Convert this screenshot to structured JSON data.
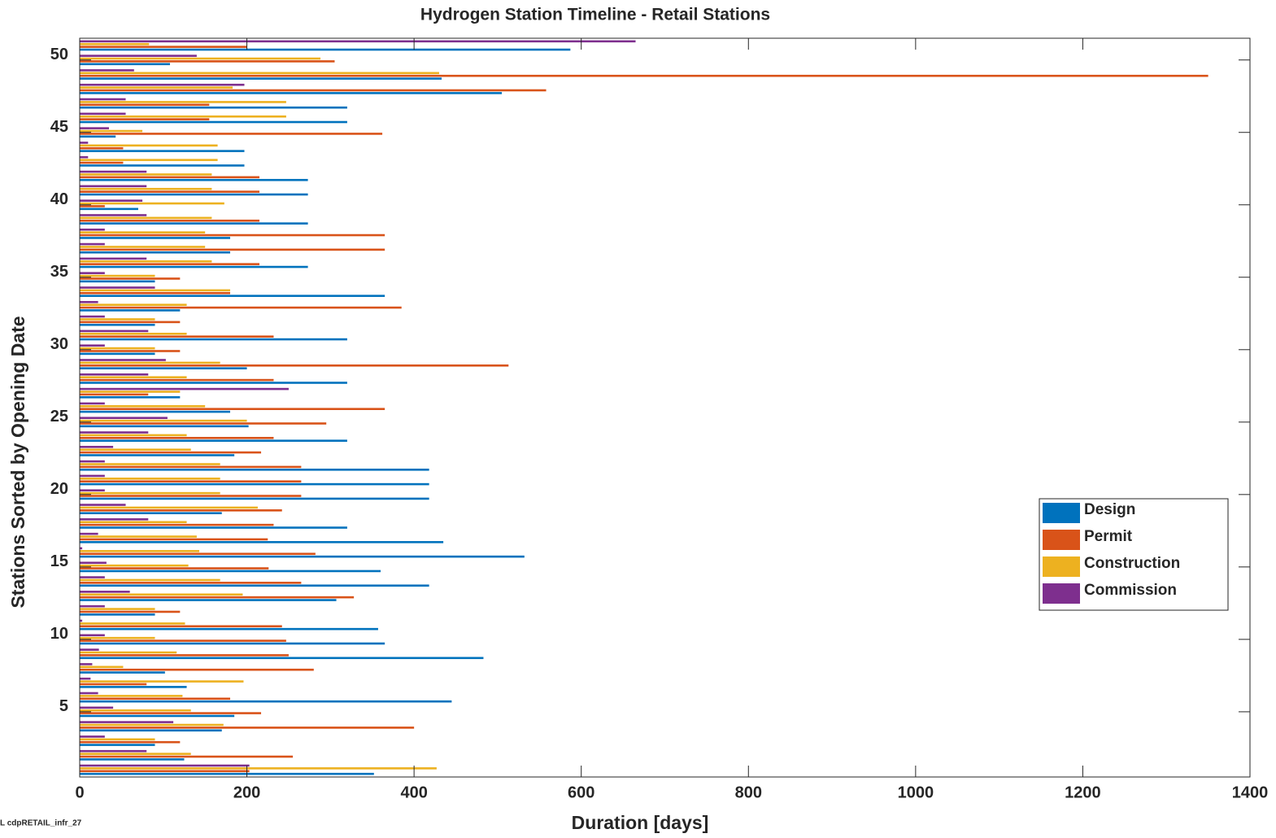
{
  "chart_data": {
    "type": "barh",
    "title": "Hydrogen Station Timeline - Retail Stations",
    "xlabel": "Duration [days]",
    "ylabel": "Stations Sorted by Opening Date",
    "footer": "L cdpRETAIL_infr_27",
    "y": [
      1,
      2,
      3,
      4,
      5,
      6,
      7,
      8,
      9,
      10,
      11,
      12,
      13,
      14,
      15,
      16,
      17,
      18,
      19,
      20,
      21,
      22,
      23,
      24,
      25,
      26,
      27,
      28,
      29,
      30,
      31,
      32,
      33,
      34,
      35,
      36,
      37,
      38,
      39,
      40,
      41,
      42,
      43,
      44,
      45,
      46,
      47,
      48,
      49,
      50,
      51
    ],
    "xlim": [
      0,
      1400
    ],
    "xticks": [
      0,
      200,
      400,
      600,
      800,
      1000,
      1200,
      1400
    ],
    "ylim": [
      0.5,
      51.5
    ],
    "yticks": [
      5,
      10,
      15,
      20,
      25,
      30,
      35,
      40,
      45,
      50
    ],
    "legend": "right",
    "series": [
      {
        "name": "Design",
        "color": "#0072BD",
        "values": [
          352,
          125,
          90,
          170,
          185,
          445,
          128,
          102,
          483,
          365,
          357,
          90,
          307,
          418,
          360,
          532,
          435,
          320,
          170,
          418,
          418,
          418,
          185,
          320,
          202,
          180,
          120,
          320,
          200,
          90,
          320,
          90,
          120,
          365,
          90,
          273,
          180,
          180,
          273,
          70,
          273,
          273,
          197,
          197,
          43,
          320,
          320,
          505,
          433,
          108,
          587
        ]
      },
      {
        "name": "Permit",
        "color": "#D95319",
        "values": [
          203,
          255,
          120,
          400,
          217,
          180,
          80,
          280,
          250,
          247,
          242,
          120,
          328,
          265,
          226,
          282,
          225,
          232,
          242,
          265,
          265,
          265,
          217,
          232,
          295,
          365,
          82,
          232,
          513,
          120,
          232,
          120,
          385,
          180,
          120,
          215,
          365,
          365,
          215,
          30,
          215,
          215,
          52,
          52,
          362,
          155,
          155,
          558,
          1350,
          305,
          200
        ]
      },
      {
        "name": "Construction",
        "color": "#EDB120",
        "values": [
          427,
          133,
          90,
          172,
          133,
          123,
          196,
          52,
          116,
          90,
          126,
          90,
          195,
          168,
          130,
          143,
          140,
          128,
          213,
          168,
          168,
          168,
          133,
          128,
          200,
          150,
          120,
          128,
          168,
          90,
          128,
          90,
          128,
          180,
          90,
          158,
          150,
          150,
          158,
          173,
          158,
          158,
          165,
          165,
          75,
          247,
          247,
          183,
          430,
          288,
          83
        ]
      },
      {
        "name": "Commission",
        "color": "#7E2F8E",
        "values": [
          203,
          80,
          30,
          112,
          40,
          22,
          13,
          15,
          23,
          30,
          3,
          30,
          60,
          30,
          32,
          3,
          22,
          82,
          55,
          30,
          30,
          30,
          40,
          82,
          105,
          30,
          250,
          82,
          103,
          30,
          82,
          30,
          22,
          90,
          30,
          80,
          30,
          30,
          80,
          75,
          80,
          80,
          10,
          10,
          35,
          55,
          55,
          197,
          65,
          140,
          665
        ]
      }
    ]
  }
}
